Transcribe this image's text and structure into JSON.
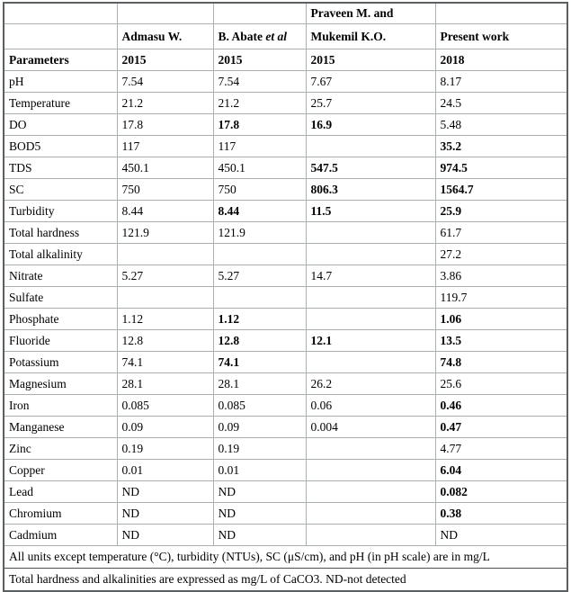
{
  "table": {
    "header": {
      "praveen_line1": "Praveen M. and",
      "admasu": "Admasu W.",
      "abate_name": "B. Abate ",
      "abate_etal": "et al",
      "praveen_line2": "Mukemil K.O.",
      "present": "Present work",
      "parameters_label": "Parameters",
      "years": [
        "2015",
        "2015",
        "2015",
        "2018"
      ]
    },
    "rows": [
      {
        "param": "pH",
        "values": [
          "7.54",
          "7.54",
          "7.67",
          "8.17"
        ],
        "bold": [
          false,
          false,
          false,
          false
        ]
      },
      {
        "param": "Temperature",
        "values": [
          "21.2",
          "21.2",
          "25.7",
          "24.5"
        ],
        "bold": [
          false,
          false,
          false,
          false
        ]
      },
      {
        "param": "DO",
        "values": [
          "17.8",
          "17.8",
          "16.9",
          "5.48"
        ],
        "bold": [
          false,
          true,
          true,
          false
        ]
      },
      {
        "param": "BOD5",
        "values": [
          "117",
          "117",
          "",
          "35.2"
        ],
        "bold": [
          false,
          false,
          false,
          true
        ]
      },
      {
        "param": "TDS",
        "values": [
          "450.1",
          "450.1",
          "547.5",
          "974.5"
        ],
        "bold": [
          false,
          false,
          true,
          true
        ]
      },
      {
        "param": "SC",
        "values": [
          "750",
          "750",
          "806.3",
          "1564.7"
        ],
        "bold": [
          false,
          false,
          true,
          true
        ]
      },
      {
        "param": "Turbidity",
        "values": [
          "8.44",
          "8.44",
          "11.5",
          "25.9"
        ],
        "bold": [
          false,
          true,
          true,
          true
        ]
      },
      {
        "param": "Total hardness",
        "values": [
          "121.9",
          "121.9",
          "",
          "61.7"
        ],
        "bold": [
          false,
          false,
          false,
          false
        ]
      },
      {
        "param": "Total alkalinity",
        "values": [
          "",
          "",
          "",
          "27.2"
        ],
        "bold": [
          false,
          false,
          false,
          false
        ]
      },
      {
        "param": "Nitrate",
        "values": [
          "5.27",
          "5.27",
          "14.7",
          "3.86"
        ],
        "bold": [
          false,
          false,
          false,
          false
        ]
      },
      {
        "param": "Sulfate",
        "values": [
          "",
          "",
          "",
          "119.7"
        ],
        "bold": [
          false,
          false,
          false,
          false
        ]
      },
      {
        "param": "Phosphate",
        "values": [
          "1.12",
          "1.12",
          "",
          "1.06"
        ],
        "bold": [
          false,
          true,
          false,
          true
        ]
      },
      {
        "param": "Fluoride",
        "values": [
          "12.8",
          "12.8",
          "12.1",
          "13.5"
        ],
        "bold": [
          false,
          true,
          true,
          true
        ]
      },
      {
        "param": "Potassium",
        "values": [
          "74.1",
          "74.1",
          "",
          "74.8"
        ],
        "bold": [
          false,
          true,
          false,
          true
        ]
      },
      {
        "param": "Magnesium",
        "values": [
          "28.1",
          "28.1",
          "26.2",
          "25.6"
        ],
        "bold": [
          false,
          false,
          false,
          false
        ]
      },
      {
        "param": "Iron",
        "values": [
          "0.085",
          "0.085",
          "0.06",
          "0.46"
        ],
        "bold": [
          false,
          false,
          false,
          true
        ]
      },
      {
        "param": "Manganese",
        "values": [
          "0.09",
          "0.09",
          "0.004",
          "0.47"
        ],
        "bold": [
          false,
          false,
          false,
          true
        ]
      },
      {
        "param": "Zinc",
        "values": [
          "0.19",
          "0.19",
          "",
          "4.77"
        ],
        "bold": [
          false,
          false,
          false,
          false
        ]
      },
      {
        "param": "Copper",
        "values": [
          "0.01",
          "0.01",
          "",
          "6.04"
        ],
        "bold": [
          false,
          false,
          false,
          true
        ]
      },
      {
        "param": "Lead",
        "values": [
          "ND",
          "ND",
          "",
          "0.082"
        ],
        "bold": [
          false,
          false,
          false,
          true
        ]
      },
      {
        "param": "Chromium",
        "values": [
          "ND",
          "ND",
          "",
          "0.38"
        ],
        "bold": [
          false,
          false,
          false,
          true
        ]
      },
      {
        "param": "Cadmium",
        "values": [
          "ND",
          "ND",
          "",
          "ND"
        ],
        "bold": [
          false,
          false,
          false,
          false
        ]
      }
    ],
    "footnotes": [
      "All units except temperature (°C), turbidity (NTUs), SC (μS/cm), and pH (in pH scale) are in mg/L",
      "Total hardness and alkalinities are expressed as mg/L of CaCO3. ND-not detected"
    ]
  },
  "colors": {
    "grid_line": "#aab0b2",
    "outer_border": "#5a5f62",
    "text": "#000000",
    "background": "#ffffff"
  }
}
